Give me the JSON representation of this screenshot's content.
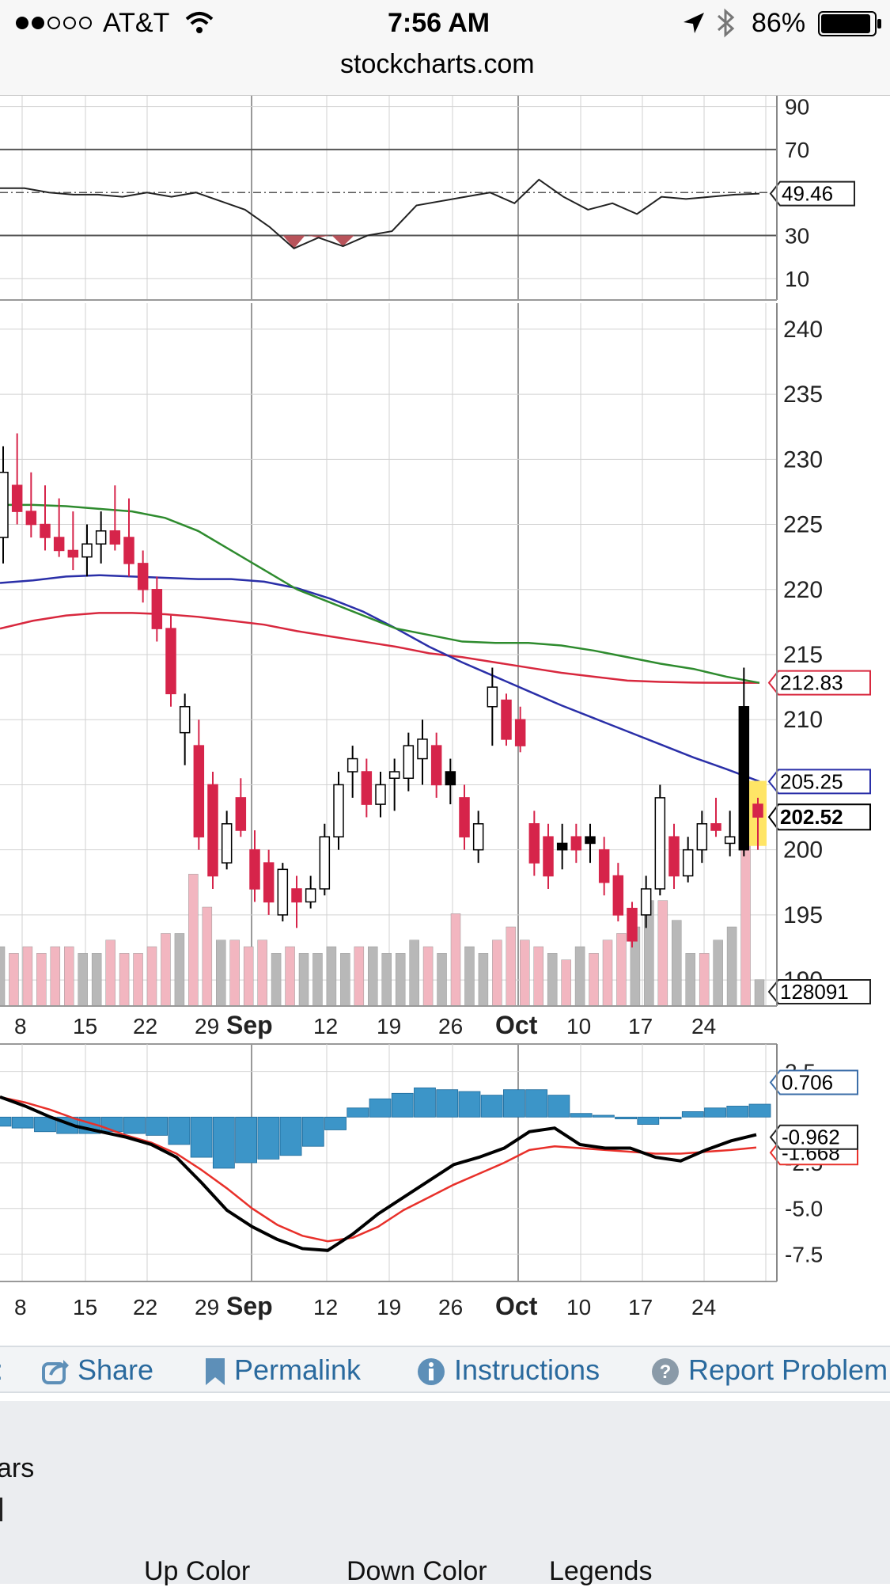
{
  "status_bar": {
    "carrier": "AT&T",
    "time": "7:56 AM",
    "battery": "86%",
    "url": "stockcharts.com",
    "icons": [
      "signal-dots-icon",
      "wifi-icon",
      "location-arrow-icon",
      "bluetooth-icon",
      "battery-icon"
    ]
  },
  "colors": {
    "up_candle": "#ffffff",
    "down_candle": "#d6244a",
    "black_candle": "#000000",
    "ma_green": "#2e8b2e",
    "ma_blue": "#2a2fa8",
    "ma_red": "#d8283e",
    "volume_up": "#b8b8b8",
    "volume_down": "#f2b6c0",
    "histogram": "#3c95c8",
    "macd_line": "#000000",
    "signal_line": "#e8302a",
    "link": "#2a6a9e"
  },
  "chart": {
    "x_ticks": [
      "8",
      "15",
      "22",
      "29",
      "Sep",
      "12",
      "19",
      "26",
      "Oct",
      "10",
      "17",
      "24"
    ],
    "rsi": {
      "ticks": [
        "90",
        "70",
        "30",
        "10"
      ],
      "value_label": "49.46"
    },
    "price": {
      "ticks": [
        "240",
        "235",
        "230",
        "225",
        "220",
        "215",
        "210",
        "205",
        "200",
        "195",
        "190"
      ],
      "ma1_label": "212.83",
      "ma2_label": "205.25",
      "last_label": "202.52",
      "volume_label": "128091"
    },
    "macd": {
      "ticks": [
        "2.5",
        "-2.5",
        "-5.0",
        "-7.5"
      ],
      "hist_label": "0.706",
      "macd_label": "-0.962",
      "signal_label": "-1.668"
    }
  },
  "chart_data": {
    "type": "candlestick",
    "price_ylim": [
      188,
      242
    ],
    "candles": [
      {
        "o": 224,
        "h": 231,
        "l": 222,
        "c": 229,
        "dir": "up"
      },
      {
        "o": 228,
        "h": 232,
        "l": 225,
        "c": 226,
        "dir": "down"
      },
      {
        "o": 226,
        "h": 229,
        "l": 224,
        "c": 225,
        "dir": "down"
      },
      {
        "o": 225,
        "h": 228,
        "l": 223,
        "c": 224,
        "dir": "down"
      },
      {
        "o": 224,
        "h": 227,
        "l": 222.5,
        "c": 223,
        "dir": "down"
      },
      {
        "o": 223,
        "h": 226,
        "l": 221.5,
        "c": 222.5,
        "dir": "down"
      },
      {
        "o": 222.5,
        "h": 225,
        "l": 221,
        "c": 223.5,
        "dir": "up"
      },
      {
        "o": 223.5,
        "h": 226,
        "l": 222,
        "c": 224.5,
        "dir": "up"
      },
      {
        "o": 224.5,
        "h": 228,
        "l": 223,
        "c": 223.5,
        "dir": "down"
      },
      {
        "o": 224,
        "h": 227,
        "l": 221,
        "c": 222,
        "dir": "down"
      },
      {
        "o": 222,
        "h": 223,
        "l": 219,
        "c": 220,
        "dir": "down"
      },
      {
        "o": 220,
        "h": 221,
        "l": 216,
        "c": 217,
        "dir": "down"
      },
      {
        "o": 217,
        "h": 218,
        "l": 211,
        "c": 212,
        "dir": "down"
      },
      {
        "o": 209,
        "h": 212,
        "l": 206.5,
        "c": 211,
        "dir": "up"
      },
      {
        "o": 208,
        "h": 210,
        "l": 200,
        "c": 201,
        "dir": "down"
      },
      {
        "o": 205,
        "h": 206,
        "l": 197,
        "c": 198,
        "dir": "down"
      },
      {
        "o": 199,
        "h": 203,
        "l": 198.5,
        "c": 202,
        "dir": "up"
      },
      {
        "o": 204,
        "h": 205.5,
        "l": 201,
        "c": 201.5,
        "dir": "down"
      },
      {
        "o": 200,
        "h": 201.5,
        "l": 196,
        "c": 197,
        "dir": "down"
      },
      {
        "o": 199,
        "h": 200,
        "l": 195,
        "c": 196,
        "dir": "down"
      },
      {
        "o": 195,
        "h": 199,
        "l": 194.5,
        "c": 198.5,
        "dir": "up"
      },
      {
        "o": 197,
        "h": 198,
        "l": 194,
        "c": 196,
        "dir": "down"
      },
      {
        "o": 196,
        "h": 198,
        "l": 195.5,
        "c": 197,
        "dir": "up"
      },
      {
        "o": 197,
        "h": 202,
        "l": 196.5,
        "c": 201,
        "dir": "up"
      },
      {
        "o": 201,
        "h": 206,
        "l": 200,
        "c": 205,
        "dir": "up"
      },
      {
        "o": 206,
        "h": 208,
        "l": 204,
        "c": 207,
        "dir": "up"
      },
      {
        "o": 206,
        "h": 207,
        "l": 202.5,
        "c": 203.5,
        "dir": "down"
      },
      {
        "o": 203.5,
        "h": 206,
        "l": 202.5,
        "c": 205,
        "dir": "up"
      },
      {
        "o": 206,
        "h": 207,
        "l": 203,
        "c": 205.5,
        "dir": "up"
      },
      {
        "o": 205.5,
        "h": 209,
        "l": 204.5,
        "c": 208,
        "dir": "up"
      },
      {
        "o": 207,
        "h": 210,
        "l": 205,
        "c": 208.5,
        "dir": "up"
      },
      {
        "o": 208,
        "h": 209,
        "l": 204,
        "c": 205,
        "dir": "down"
      },
      {
        "o": 205,
        "h": 207,
        "l": 203.5,
        "c": 206,
        "dir": "black"
      },
      {
        "o": 204,
        "h": 205,
        "l": 200,
        "c": 201,
        "dir": "down"
      },
      {
        "o": 200,
        "h": 203,
        "l": 199,
        "c": 202,
        "dir": "up"
      },
      {
        "o": 211,
        "h": 214,
        "l": 208,
        "c": 212.5,
        "dir": "up"
      },
      {
        "o": 211.5,
        "h": 212,
        "l": 208,
        "c": 208.5,
        "dir": "down"
      },
      {
        "o": 210,
        "h": 211,
        "l": 207.5,
        "c": 208,
        "dir": "down"
      },
      {
        "o": 202,
        "h": 203,
        "l": 198,
        "c": 199,
        "dir": "down"
      },
      {
        "o": 201,
        "h": 202,
        "l": 197,
        "c": 198,
        "dir": "down"
      },
      {
        "o": 200,
        "h": 202,
        "l": 198.5,
        "c": 200.5,
        "dir": "black"
      },
      {
        "o": 200,
        "h": 202,
        "l": 199,
        "c": 201,
        "dir": "down"
      },
      {
        "o": 201,
        "h": 202,
        "l": 199,
        "c": 200.5,
        "dir": "black"
      },
      {
        "o": 200,
        "h": 201,
        "l": 196.5,
        "c": 197.5,
        "dir": "down"
      },
      {
        "o": 198,
        "h": 199,
        "l": 194.5,
        "c": 195,
        "dir": "down"
      },
      {
        "o": 193,
        "h": 196,
        "l": 192.5,
        "c": 195.5,
        "dir": "down"
      },
      {
        "o": 195,
        "h": 198,
        "l": 194,
        "c": 197,
        "dir": "up"
      },
      {
        "o": 197,
        "h": 205,
        "l": 196.5,
        "c": 204,
        "dir": "up"
      },
      {
        "o": 201,
        "h": 202,
        "l": 197,
        "c": 198,
        "dir": "down"
      },
      {
        "o": 198,
        "h": 201,
        "l": 197.5,
        "c": 200,
        "dir": "up"
      },
      {
        "o": 200,
        "h": 203,
        "l": 199,
        "c": 202,
        "dir": "up"
      },
      {
        "o": 202,
        "h": 204,
        "l": 201,
        "c": 201.5,
        "dir": "down"
      },
      {
        "o": 201,
        "h": 203,
        "l": 199.5,
        "c": 200.5,
        "dir": "up"
      },
      {
        "o": 200,
        "h": 214,
        "l": 199.5,
        "c": 211,
        "dir": "black"
      },
      {
        "o": 203.5,
        "h": 204,
        "l": 200,
        "c": 202.52,
        "dir": "down"
      }
    ],
    "ma_green": [
      226.5,
      226.5,
      226.4,
      226.2,
      226,
      225.5,
      224.5,
      223,
      221.5,
      220,
      219,
      218,
      217,
      216.5,
      216,
      215.9,
      215.9,
      215.7,
      215.3,
      214.8,
      214.3,
      213.9,
      213.3,
      212.83
    ],
    "ma_blue": [
      220.5,
      220.7,
      221,
      221.1,
      221,
      220.9,
      220.8,
      220.8,
      220.6,
      220.1,
      219.3,
      218.3,
      217,
      215.6,
      214.4,
      213.3,
      212.2,
      211.1,
      210.1,
      209.1,
      208.1,
      207.1,
      206.2,
      205.25
    ],
    "ma_red": [
      217,
      217.6,
      218,
      218.2,
      218.2,
      218.1,
      217.9,
      217.6,
      217.3,
      216.8,
      216.4,
      216,
      215.6,
      215.1,
      214.8,
      214.4,
      214,
      213.6,
      213.3,
      213,
      212.9,
      212.85,
      212.83,
      212.83
    ],
    "rsi": [
      52,
      52,
      50,
      49,
      49,
      48,
      50,
      48,
      50,
      46,
      42,
      34,
      24,
      29,
      25,
      30,
      32,
      44,
      46,
      48,
      50,
      45,
      56,
      48,
      42,
      45,
      40,
      48,
      47,
      48,
      49,
      49.46
    ],
    "rsi_ylim": [
      0,
      95
    ],
    "volume_ylim": [
      0,
      30
    ],
    "volume_levels": [
      9,
      8,
      9,
      8,
      9,
      9,
      8,
      8,
      10,
      8,
      8,
      9,
      11,
      11,
      20,
      15,
      10,
      10,
      9,
      10,
      8,
      9,
      8,
      8,
      9,
      8,
      9,
      9,
      8,
      8,
      10,
      9,
      8,
      14,
      9,
      8,
      10,
      12,
      10,
      9,
      8,
      7,
      9,
      8,
      10,
      11,
      12,
      16,
      16,
      13,
      8,
      8,
      10,
      12,
      25,
      4
    ],
    "macd_ylim": [
      -9,
      4
    ],
    "macd_line": [
      1.1,
      0.6,
      0,
      -0.5,
      -0.8,
      -1.1,
      -1.5,
      -2.2,
      -3.6,
      -5.1,
      -6.0,
      -6.7,
      -7.2,
      -7.3,
      -6.4,
      -5.3,
      -4.4,
      -3.5,
      -2.6,
      -2.2,
      -1.7,
      -0.8,
      -0.6,
      -1.5,
      -1.7,
      -1.7,
      -2.2,
      -2.4,
      -1.8,
      -1.3,
      -0.962
    ],
    "signal_line": [
      1.1,
      0.8,
      0.4,
      -0.1,
      -0.5,
      -1.0,
      -1.4,
      -2.0,
      -2.9,
      -3.9,
      -5.0,
      -5.9,
      -6.5,
      -6.8,
      -6.6,
      -6.0,
      -5.1,
      -4.4,
      -3.7,
      -3.1,
      -2.5,
      -1.8,
      -1.6,
      -1.7,
      -1.8,
      -1.9,
      -2.0,
      -2.0,
      -1.9,
      -1.8,
      -1.668
    ],
    "histogram": [
      -0.5,
      -0.6,
      -0.8,
      -0.9,
      -0.9,
      -0.8,
      -0.9,
      -1.0,
      -1.5,
      -2.2,
      -2.8,
      -2.5,
      -2.3,
      -2.1,
      -1.6,
      -0.7,
      0.5,
      1.0,
      1.3,
      1.6,
      1.5,
      1.4,
      1.2,
      1.5,
      1.5,
      1.2,
      0.2,
      0.1,
      -0.1,
      -0.4,
      -0.1,
      0.3,
      0.5,
      0.6,
      0.706
    ]
  },
  "toolbar": {
    "items": [
      {
        "icon": "share-icon",
        "label": "Share"
      },
      {
        "icon": "bookmark-icon",
        "label": "Permalink"
      },
      {
        "icon": "info-icon",
        "label": "Instructions"
      },
      {
        "icon": "help-icon",
        "label": "Report Problem"
      }
    ]
  },
  "settings_panel": {
    "partial_label": "ars",
    "columns": [
      "Up Color",
      "Down Color",
      "Legends"
    ]
  }
}
